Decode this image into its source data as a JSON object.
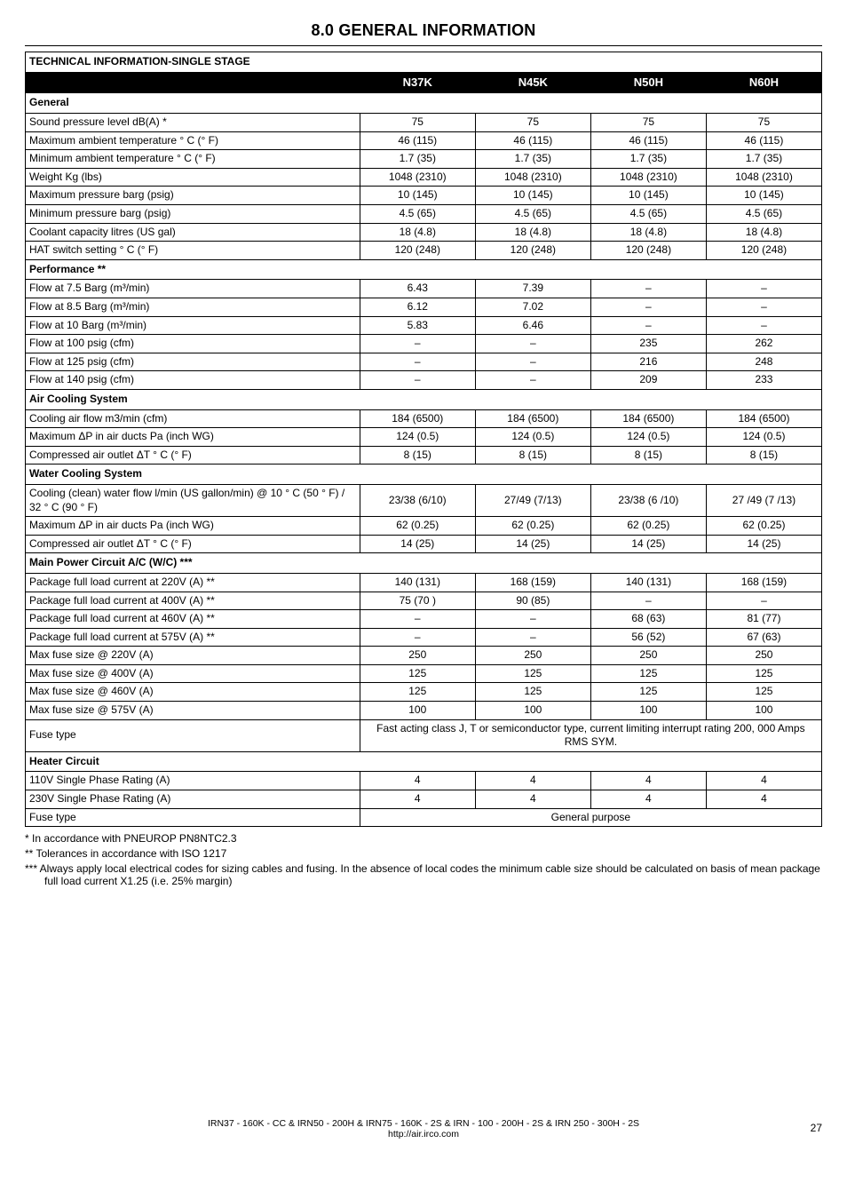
{
  "section_title": "8.0 GENERAL INFORMATION",
  "table_title": "TECHNICAL INFORMATION-SINGLE STAGE",
  "columns": [
    "N37K",
    "N45K",
    "N50H",
    "N60H"
  ],
  "groups": [
    {
      "name": "General",
      "rows": [
        {
          "label": "Sound pressure level dB(A) *",
          "vals": [
            "75",
            "75",
            "75",
            "75"
          ]
        },
        {
          "label": "Maximum ambient temperature ° C (° F)",
          "vals": [
            "46 (115)",
            "46 (115)",
            "46 (115)",
            "46 (115)"
          ]
        },
        {
          "label": "Minimum ambient temperature ° C (° F)",
          "vals": [
            "1.7 (35)",
            "1.7 (35)",
            "1.7 (35)",
            "1.7 (35)"
          ]
        },
        {
          "label": "Weight Kg (lbs)",
          "vals": [
            "1048 (2310)",
            "1048 (2310)",
            "1048 (2310)",
            "1048 (2310)"
          ]
        },
        {
          "label": "Maximum pressure barg (psig)",
          "vals": [
            "10 (145)",
            "10 (145)",
            "10 (145)",
            "10 (145)"
          ]
        },
        {
          "label": "Minimum pressure barg (psig)",
          "vals": [
            "4.5 (65)",
            "4.5 (65)",
            "4.5 (65)",
            "4.5 (65)"
          ]
        },
        {
          "label": "Coolant capacity litres (US gal)",
          "vals": [
            "18 (4.8)",
            "18 (4.8)",
            "18 (4.8)",
            "18 (4.8)"
          ]
        },
        {
          "label": "HAT switch setting ° C (° F)",
          "vals": [
            "120 (248)",
            "120 (248)",
            "120 (248)",
            "120 (248)"
          ]
        }
      ]
    },
    {
      "name": "Performance **",
      "rows": [
        {
          "label": "Flow at 7.5 Barg (m³/min)",
          "vals": [
            "6.43",
            "7.39",
            "–",
            "–"
          ]
        },
        {
          "label": "Flow at 8.5 Barg (m³/min)",
          "vals": [
            "6.12",
            "7.02",
            "–",
            "–"
          ]
        },
        {
          "label": "Flow at 10 Barg (m³/min)",
          "vals": [
            "5.83",
            "6.46",
            "–",
            "–"
          ]
        },
        {
          "label": "Flow at 100 psig (cfm)",
          "vals": [
            "–",
            "–",
            "235",
            "262"
          ]
        },
        {
          "label": "Flow at 125 psig (cfm)",
          "vals": [
            "–",
            "–",
            "216",
            "248"
          ]
        },
        {
          "label": "Flow at 140 psig (cfm)",
          "vals": [
            "–",
            "–",
            "209",
            "233"
          ]
        }
      ]
    },
    {
      "name": "Air Cooling System",
      "rows": [
        {
          "label": "Cooling air flow m3/min (cfm)",
          "vals": [
            "184 (6500)",
            "184 (6500)",
            "184 (6500)",
            "184 (6500)"
          ]
        },
        {
          "label": "Maximum ΔP in air ducts Pa (inch WG)",
          "vals": [
            "124 (0.5)",
            "124 (0.5)",
            "124 (0.5)",
            "124 (0.5)"
          ]
        },
        {
          "label": "Compressed air outlet ΔT ° C (° F)",
          "vals": [
            "8 (15)",
            "8 (15)",
            "8 (15)",
            "8 (15)"
          ]
        }
      ]
    },
    {
      "name": "Water Cooling System",
      "rows": [
        {
          "label": "Cooling (clean) water flow l/min (US gallon/min) @ 10 ° C (50 ° F) / 32 ° C (90 ° F)",
          "vals": [
            "23/38  (6/10)",
            "27/49  (7/13)",
            "23/38  (6 /10)",
            "27 /49  (7 /13)"
          ]
        },
        {
          "label": "Maximum ΔP in air ducts Pa (inch WG)",
          "vals": [
            "62 (0.25)",
            "62 (0.25)",
            "62 (0.25)",
            "62 (0.25)"
          ]
        },
        {
          "label": "Compressed air outlet ΔT ° C (° F)",
          "vals": [
            "14 (25)",
            "14 (25)",
            "14 (25)",
            "14 (25)"
          ]
        }
      ]
    },
    {
      "name": "Main Power Circuit A/C (W/C) ***",
      "rows": [
        {
          "label": "Package full load current at 220V (A) **",
          "vals": [
            "140 (131)",
            "168 (159)",
            "140 (131)",
            "168 (159)"
          ]
        },
        {
          "label": "Package full load current at 400V (A) **",
          "vals": [
            "75 (70 )",
            "90 (85)",
            "–",
            "–"
          ]
        },
        {
          "label": "Package full load current at 460V (A) **",
          "vals": [
            "–",
            "–",
            "68 (63)",
            "81 (77)"
          ]
        },
        {
          "label": "Package full load current at 575V (A) **",
          "vals": [
            "–",
            "–",
            "56 (52)",
            "67 (63)"
          ]
        },
        {
          "label": "Max fuse size @ 220V (A)",
          "vals": [
            "250",
            "250",
            "250",
            "250"
          ]
        },
        {
          "label": "Max fuse size @ 400V (A)",
          "vals": [
            "125",
            "125",
            "125",
            "125"
          ]
        },
        {
          "label": "Max fuse size @ 460V (A)",
          "vals": [
            "125",
            "125",
            "125",
            "125"
          ]
        },
        {
          "label": "Max fuse size @ 575V (A)",
          "vals": [
            "100",
            "100",
            "100",
            "100"
          ]
        },
        {
          "label": "Fuse type",
          "span": "Fast acting class J, T or semiconductor type, current limiting interrupt rating 200, 000 Amps RMS SYM."
        }
      ]
    },
    {
      "name": "Heater Circuit",
      "rows": [
        {
          "label": "110V Single Phase Rating (A)",
          "vals": [
            "4",
            "4",
            "4",
            "4"
          ]
        },
        {
          "label": "230V Single Phase Rating (A)",
          "vals": [
            "4",
            "4",
            "4",
            "4"
          ]
        },
        {
          "label": "Fuse type",
          "span": "General purpose"
        }
      ]
    }
  ],
  "footnotes": [
    "* In accordance with PNEUROP PN8NTC2.3",
    "** Tolerances in accordance with ISO 1217",
    "*** Always apply local electrical codes for sizing cables and fusing. In the absence of local codes the minimum cable size should be  calculated on basis of mean package full load current X1.25 (i.e. 25% margin)"
  ],
  "footer_line1": "IRN37 - 160K - CC & IRN50 - 200H & IRN75 - 160K - 2S & IRN - 100 - 200H - 2S & IRN 250 - 300H - 2S",
  "footer_line2": "http://air.irco.com",
  "page_number": "27"
}
